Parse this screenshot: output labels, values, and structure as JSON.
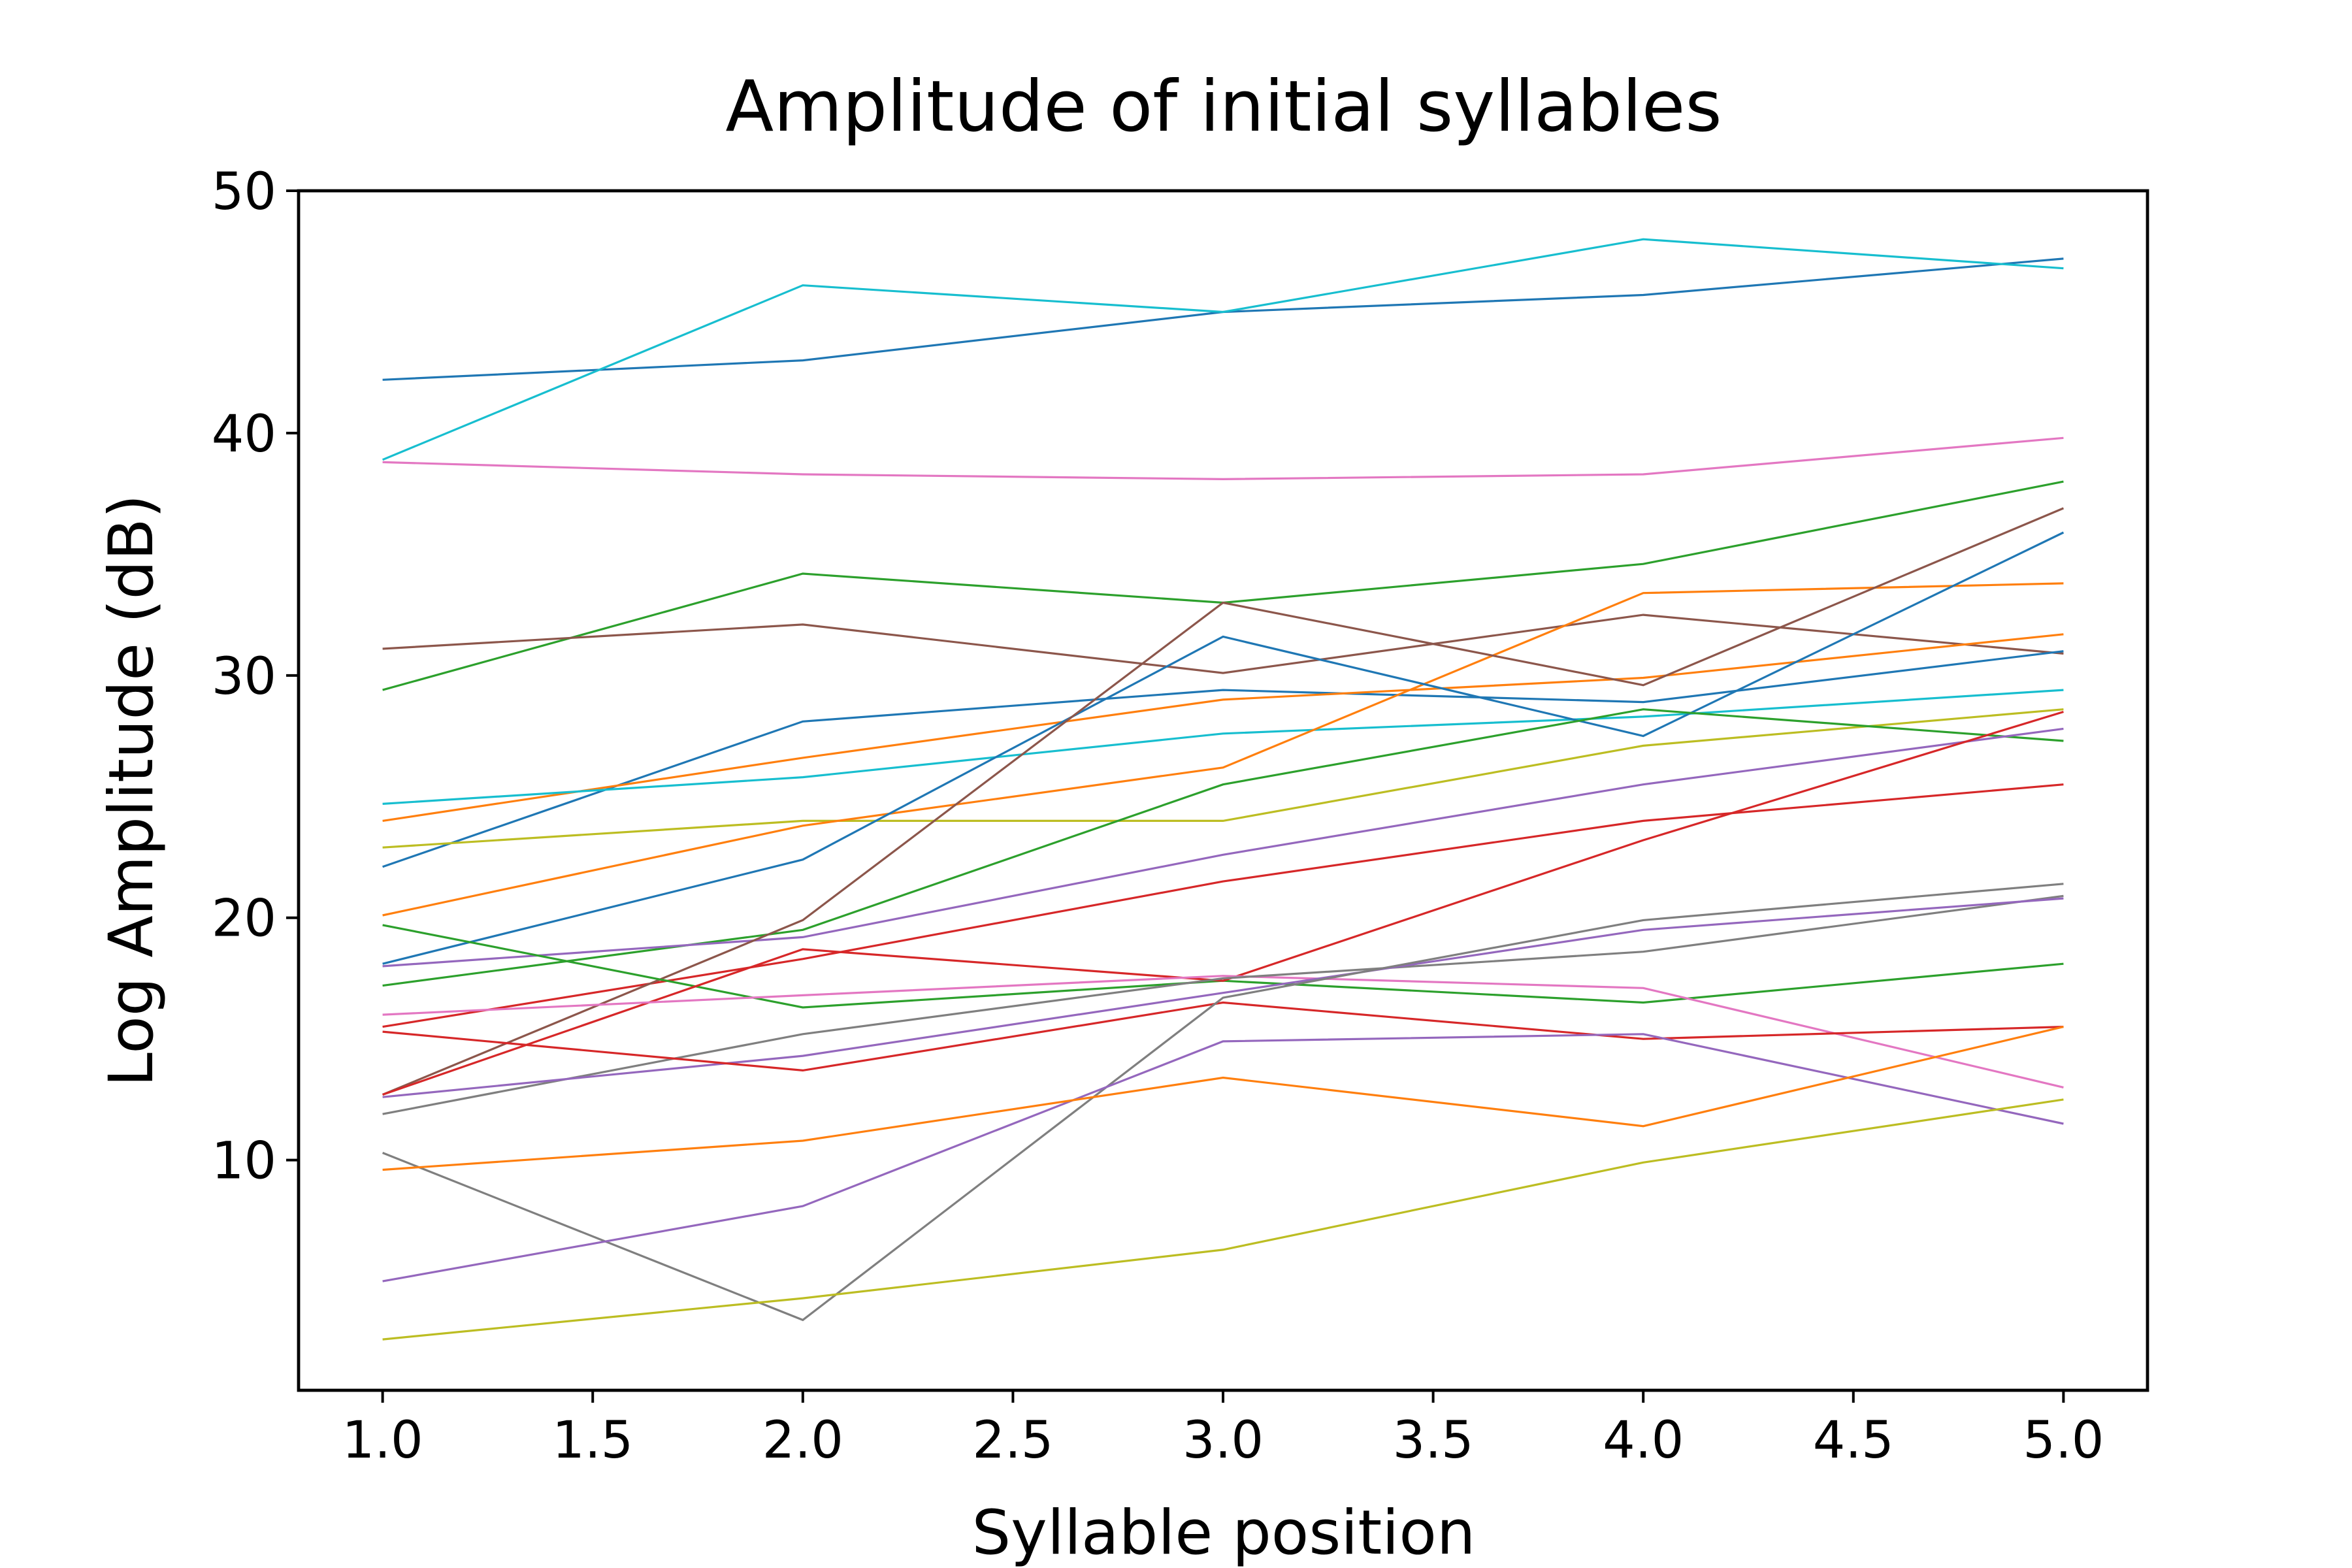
{
  "chart_data": {
    "type": "line",
    "title": "Amplitude of initial syllables",
    "xlabel": "Syllable position",
    "ylabel": "Log Amplitude (dB)",
    "x": [
      1,
      2,
      3,
      4,
      5
    ],
    "xlim": [
      0.8,
      5.2
    ],
    "ylim": [
      0.5,
      50
    ],
    "x_ticks": [
      1.0,
      1.5,
      2.0,
      2.5,
      3.0,
      3.5,
      4.0,
      4.5,
      5.0
    ],
    "x_tick_labels": [
      "1.0",
      "1.5",
      "2.0",
      "2.5",
      "3.0",
      "3.5",
      "4.0",
      "4.5",
      "5.0"
    ],
    "y_ticks": [
      10,
      20,
      30,
      40,
      50
    ],
    "y_tick_labels": [
      "10",
      "20",
      "30",
      "40",
      "50"
    ],
    "grid": false,
    "legend": "none",
    "series": [
      {
        "color": "#1f77b4",
        "values": [
          42.2,
          43.0,
          45.0,
          45.7,
          47.2
        ]
      },
      {
        "color": "#17becf",
        "values": [
          38.9,
          46.1,
          45.0,
          48.0,
          46.8
        ]
      },
      {
        "color": "#e377c2",
        "values": [
          38.8,
          38.3,
          38.1,
          38.3,
          39.8
        ]
      },
      {
        "color": "#2ca02c",
        "values": [
          29.4,
          34.2,
          33.0,
          34.6,
          38.0
        ]
      },
      {
        "color": "#8c564b",
        "values": [
          31.1,
          32.1,
          30.1,
          32.5,
          30.9
        ]
      },
      {
        "color": "#1f77b4",
        "values": [
          22.1,
          28.1,
          29.4,
          28.9,
          31.0
        ]
      },
      {
        "color": "#ff7f0e",
        "values": [
          24.0,
          26.6,
          29.0,
          29.9,
          31.7
        ]
      },
      {
        "color": "#17becf",
        "values": [
          24.7,
          25.8,
          27.6,
          28.3,
          29.4
        ]
      },
      {
        "color": "#bcbd22",
        "values": [
          22.9,
          24.0,
          24.0,
          27.1,
          28.6
        ]
      },
      {
        "color": "#ff7f0e",
        "values": [
          20.1,
          23.8,
          26.2,
          33.4,
          33.8
        ]
      },
      {
        "color": "#1f77b4",
        "values": [
          18.1,
          22.4,
          31.6,
          27.5,
          35.9
        ]
      },
      {
        "color": "#2ca02c",
        "values": [
          17.2,
          19.5,
          25.5,
          28.6,
          27.3
        ]
      },
      {
        "color": "#9467bd",
        "values": [
          18.0,
          19.2,
          22.6,
          25.5,
          27.8
        ]
      },
      {
        "color": "#d62728",
        "values": [
          15.5,
          18.3,
          21.5,
          24.0,
          25.5
        ]
      },
      {
        "color": "#8c564b",
        "values": [
          12.7,
          19.9,
          33.0,
          29.6,
          36.9
        ]
      },
      {
        "color": "#2ca02c",
        "values": [
          19.7,
          16.3,
          17.4,
          16.5,
          18.1
        ]
      },
      {
        "color": "#d62728",
        "values": [
          12.7,
          18.7,
          17.4,
          23.2,
          28.5
        ]
      },
      {
        "color": "#e377c2",
        "values": [
          16.0,
          16.8,
          17.6,
          17.1,
          13.0
        ]
      },
      {
        "color": "#7f7f7f",
        "values": [
          11.9,
          15.2,
          17.5,
          18.6,
          20.9
        ]
      },
      {
        "color": "#9467bd",
        "values": [
          12.6,
          14.3,
          16.9,
          19.5,
          20.8
        ]
      },
      {
        "color": "#d62728",
        "values": [
          15.3,
          13.7,
          16.5,
          15.0,
          15.5
        ]
      },
      {
        "color": "#7f7f7f",
        "values": [
          10.3,
          3.4,
          16.7,
          19.9,
          21.4
        ]
      },
      {
        "color": "#9467bd",
        "values": [
          5.0,
          8.1,
          14.9,
          15.2,
          11.5
        ]
      },
      {
        "color": "#ff7f0e",
        "values": [
          9.6,
          10.8,
          13.4,
          11.4,
          15.5
        ]
      },
      {
        "color": "#bcbd22",
        "values": [
          2.6,
          4.3,
          6.3,
          9.9,
          12.5
        ]
      }
    ]
  }
}
